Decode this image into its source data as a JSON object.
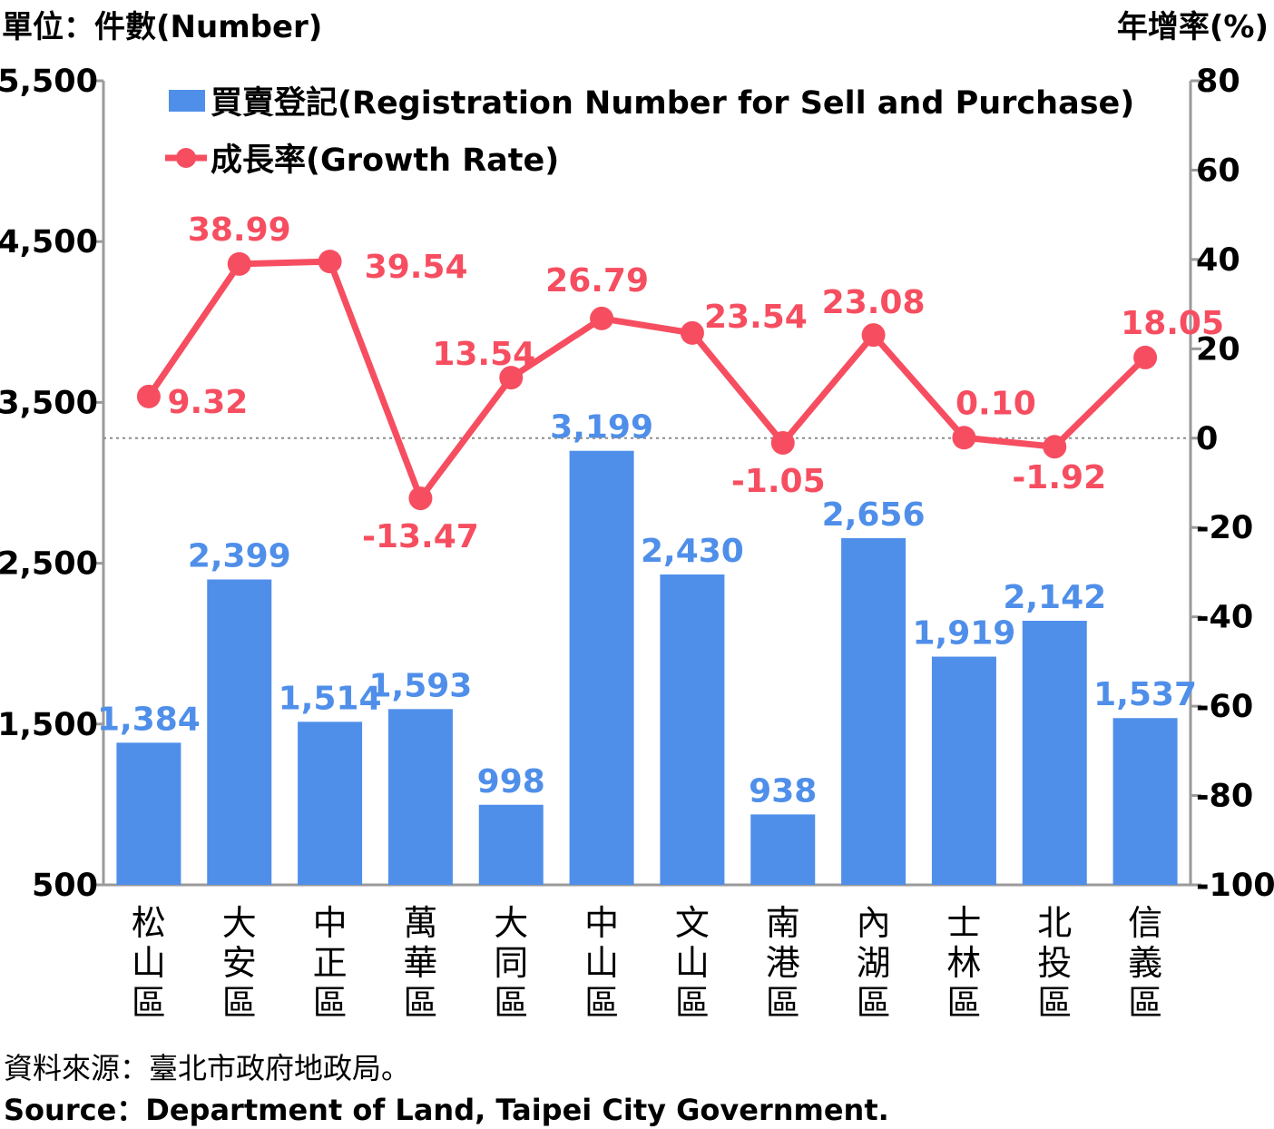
{
  "units": {
    "left": "單位：件數(Number)",
    "right": "年增率(%)"
  },
  "chart_data": {
    "type": "bar+line",
    "categories": [
      "松山區",
      "大安區",
      "中正區",
      "萬華區",
      "大同區",
      "中山區",
      "文山區",
      "南港區",
      "內湖區",
      "士林區",
      "北投區",
      "信義區"
    ],
    "series": [
      {
        "name": "買賣登記(Registration Number for Sell and Purchase)",
        "type": "bar",
        "axis": "left",
        "color": "#4F8FEA",
        "values": [
          1384,
          2399,
          1514,
          1593,
          998,
          3199,
          2430,
          938,
          2656,
          1919,
          2142,
          1537
        ],
        "labels": [
          "1,384",
          "2,399",
          "1,514",
          "1,593",
          "998",
          "3,199",
          "2,430",
          "938",
          "2,656",
          "1,919",
          "2,142",
          "1,537"
        ]
      },
      {
        "name": "成長率(Growth Rate)",
        "type": "line",
        "axis": "right",
        "color": "#F64E60",
        "values": [
          9.32,
          38.99,
          39.54,
          -13.47,
          13.54,
          26.79,
          23.54,
          -1.05,
          23.08,
          0.1,
          -1.92,
          18.05
        ],
        "labels": [
          "9.32",
          "38.99",
          "39.54",
          "-13.47",
          "13.54",
          "26.79",
          "23.54",
          "-1.05",
          "23.08",
          "0.10",
          "-1.92",
          "18.05"
        ]
      }
    ],
    "y_left": {
      "min": 500,
      "max": 5500,
      "ticks": [
        "500",
        "1,500",
        "2,500",
        "3,500",
        "4,500",
        "5,500"
      ]
    },
    "y_right": {
      "min": -100,
      "max": 80,
      "ticks": [
        "-100",
        "-80",
        "-60",
        "-40",
        "-20",
        "0",
        "20",
        "40",
        "60",
        "80"
      ]
    },
    "zero_reference_line": true,
    "legend_position": "top"
  },
  "footer": {
    "source_zh": "資料來源：臺北市政府地政局。",
    "source_en": "Source：Department of Land, Taipei City Government."
  }
}
